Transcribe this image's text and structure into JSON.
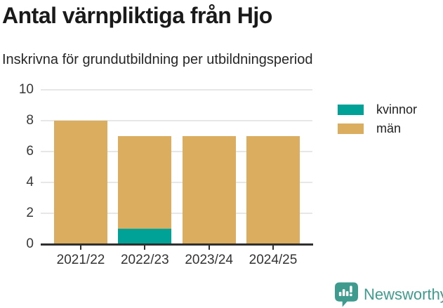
{
  "header": {
    "title": "Antal värnpliktiga från Hjo",
    "subtitle": "Inskrivna för grundutbildning per utbildningsperiod"
  },
  "chart_data": {
    "type": "bar",
    "stacked": true,
    "title": "Antal värnpliktiga från Hjo",
    "subtitle": "Inskrivna för grundutbildning per utbildningsperiod",
    "categories": [
      "2021/22",
      "2022/23",
      "2023/24",
      "2024/25"
    ],
    "series": [
      {
        "name": "kvinnor",
        "color": "#00A196",
        "values": [
          0,
          1,
          0,
          0
        ]
      },
      {
        "name": "män",
        "color": "#DBAD5E",
        "values": [
          8,
          6,
          7,
          7
        ]
      }
    ],
    "totals": [
      8,
      7,
      7,
      7
    ],
    "xlabel": "",
    "ylabel": "",
    "ylim": [
      0,
      10
    ],
    "yticks": [
      0,
      2,
      4,
      6,
      8,
      10
    ],
    "grid": true,
    "gridline_color": "#e7e7e7",
    "axis_color": "#2f2f2f",
    "legend_position": "top-right"
  },
  "footer": {
    "brand": "Newsworthy",
    "brand_color": "#3E9B8D",
    "logo_icon": "bar-chart-speech-bubble-icon"
  }
}
